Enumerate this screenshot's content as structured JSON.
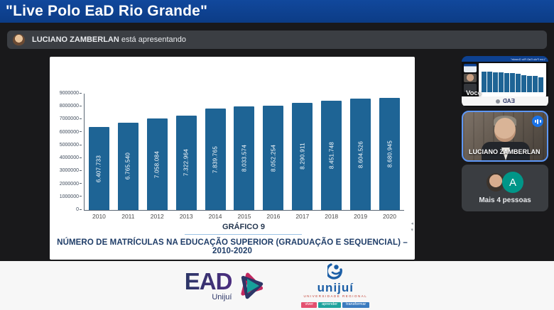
{
  "window": {
    "title": "\"Live Polo EaD Rio Grande\""
  },
  "banner": {
    "name": "LUCIANO ZAMBERLAN",
    "suffix": " está apresentando"
  },
  "chart_data": {
    "type": "bar",
    "title": "GRÁFICO 9",
    "subtitle": "NÚMERO DE MATRÍCULAS NA EDUCAÇÃO SUPERIOR (GRADUAÇÃO E SEQUENCIAL) – 2010-2020",
    "categories": [
      "2010",
      "2011",
      "2012",
      "2013",
      "2014",
      "2015",
      "2016",
      "2017",
      "2018",
      "2019",
      "2020"
    ],
    "values": [
      6407733,
      6765540,
      7058084,
      7322964,
      7839765,
      8033574,
      8052254,
      8290911,
      8451748,
      8604526,
      8680945
    ],
    "bar_labels": [
      "6.407.733",
      "6.765.540",
      "7.058.084",
      "7.322.964",
      "7.839.765",
      "8.033.574",
      "8.052.254",
      "8.290.911",
      "8.451.748",
      "8.604.526",
      "8.680.945"
    ],
    "ylim": [
      0,
      9000000
    ],
    "ytick_step": 1000000,
    "xlabel": "",
    "ylabel": "",
    "grid": false,
    "legend": false,
    "bar_color": "#1e6495"
  },
  "sidebar": {
    "self": {
      "label": "Você"
    },
    "speaker": {
      "label": "LUCIANO ZAMBERLAN"
    },
    "others": {
      "label": "Mais 4 pessoas",
      "avatar_letter": "A"
    }
  },
  "footer": {
    "ead": {
      "text": "EAD",
      "sub": "Unijuí"
    },
    "unijui": {
      "text": "unijuí",
      "sub": "UNIVERSIDADE REGIONAL",
      "tags": [
        "viver",
        "aprender",
        "transformar"
      ]
    }
  },
  "colors": {
    "topbar_blue": "#0d3f8c",
    "bar_blue": "#1e6495",
    "audio_badge_blue": "#1a73e8",
    "speaker_border_blue": "#5e97f6",
    "avatar_teal": "#009688",
    "tag_red": "#e4506f",
    "tag_teal": "#1fa39d",
    "tag_blue": "#3a7bbf"
  }
}
